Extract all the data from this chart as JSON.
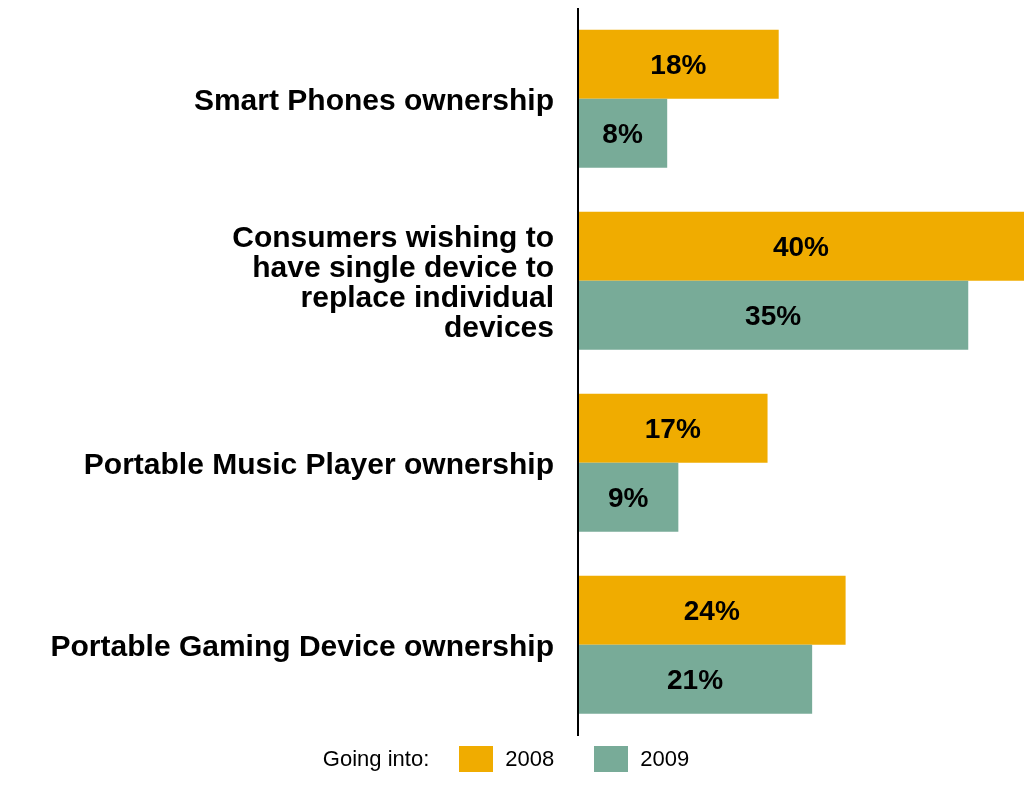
{
  "chart_data": {
    "type": "bar",
    "orientation": "horizontal",
    "categories": [
      "Smart Phones ownership",
      "Consumers wishing to have single device to replace individual devices",
      "Portable Music Player ownership",
      "Portable Gaming Device ownership"
    ],
    "series": [
      {
        "name": "2008",
        "color": "#f0ac00",
        "values": [
          18,
          40,
          17,
          24
        ],
        "value_labels": [
          "18%",
          "40%",
          "17%",
          "24%"
        ]
      },
      {
        "name": "2009",
        "color": "#78ab98",
        "values": [
          8,
          35,
          9,
          21
        ],
        "value_labels": [
          "8%",
          "35%",
          "9%",
          "21%"
        ]
      }
    ],
    "xlim": [
      0,
      40
    ],
    "legend": "bottom",
    "legend_title": "Going into:",
    "tick_labels": "y"
  }
}
